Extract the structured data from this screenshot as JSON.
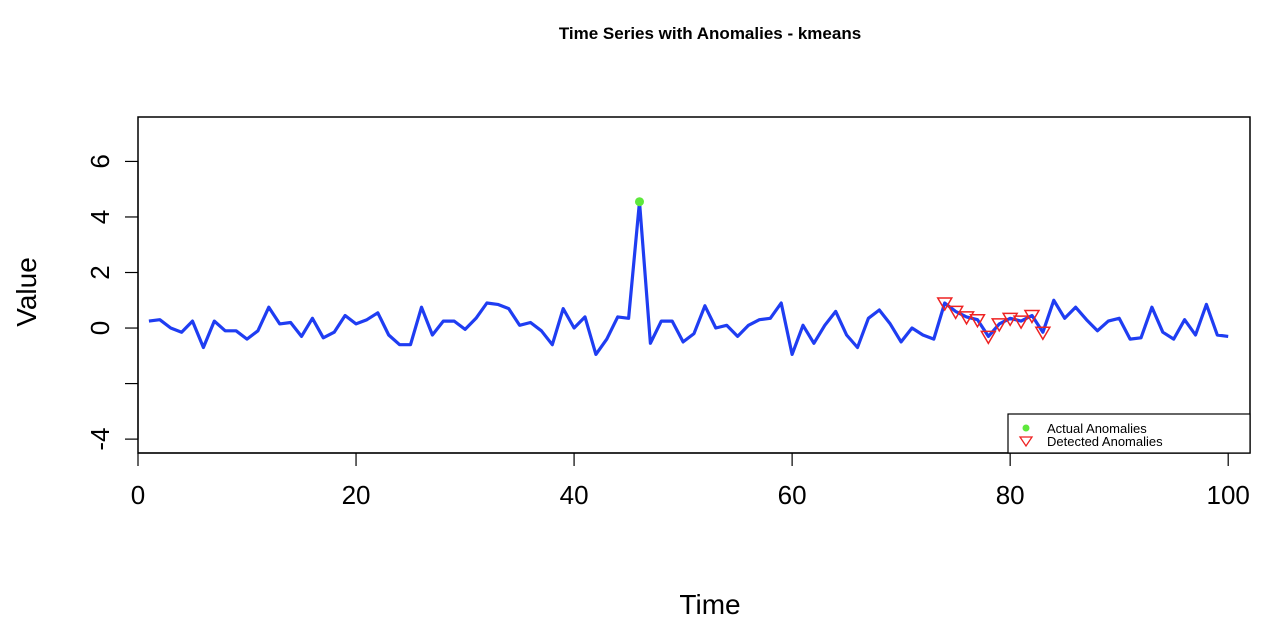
{
  "chart_data": {
    "type": "line",
    "title": "Time Series with Anomalies - kmeans",
    "xlabel": "Time",
    "ylabel": "Value",
    "xlim": [
      0,
      102
    ],
    "ylim": [
      -4.5,
      7.6
    ],
    "xticks": [
      0,
      20,
      40,
      60,
      80,
      100
    ],
    "yticks": [
      -4,
      0,
      2,
      4,
      6
    ],
    "ytick_labels": [
      "-4",
      "0",
      "2",
      "4",
      "6"
    ],
    "grid": false,
    "legend_position": "bottom-right",
    "x": [
      1,
      2,
      3,
      4,
      5,
      6,
      7,
      8,
      9,
      10,
      11,
      12,
      13,
      14,
      15,
      16,
      17,
      18,
      19,
      20,
      21,
      22,
      23,
      24,
      25,
      26,
      27,
      28,
      29,
      30,
      31,
      32,
      33,
      34,
      35,
      36,
      37,
      38,
      39,
      40,
      41,
      42,
      43,
      44,
      45,
      46,
      47,
      48,
      49,
      50,
      51,
      52,
      53,
      54,
      55,
      56,
      57,
      58,
      59,
      60,
      61,
      62,
      63,
      64,
      65,
      66,
      67,
      68,
      69,
      70,
      71,
      72,
      73,
      74,
      75,
      76,
      77,
      78,
      79,
      80,
      81,
      82,
      83,
      84,
      85,
      86,
      87,
      88,
      89,
      90,
      91,
      92,
      93,
      94,
      95,
      96,
      97,
      98,
      99,
      100
    ],
    "series": [
      {
        "color": "#1f3df2",
        "values": [
          0.25,
          0.3,
          0.0,
          -0.15,
          0.25,
          -0.7,
          0.25,
          -0.1,
          -0.1,
          -0.4,
          -0.1,
          0.75,
          0.15,
          0.2,
          -0.3,
          0.35,
          -0.35,
          -0.15,
          0.45,
          0.15,
          0.3,
          0.55,
          -0.25,
          -0.6,
          -0.6,
          0.75,
          -0.25,
          0.25,
          0.25,
          -0.05,
          0.35,
          0.9,
          0.85,
          0.7,
          0.1,
          0.2,
          -0.1,
          -0.6,
          0.7,
          0.0,
          0.4,
          -0.95,
          -0.4,
          0.4,
          0.35,
          4.55,
          -0.55,
          0.25,
          0.25,
          -0.5,
          -0.2,
          0.8,
          0.0,
          0.1,
          -0.3,
          0.1,
          0.3,
          0.35,
          0.9,
          -0.95,
          0.1,
          -0.55,
          0.1,
          0.6,
          -0.25,
          -0.7,
          0.35,
          0.65,
          0.15,
          -0.5,
          0.0,
          -0.25,
          -0.4,
          0.9,
          0.6,
          0.4,
          0.3,
          -0.3,
          0.15,
          0.35,
          0.25,
          0.45,
          -0.15,
          1.0,
          0.35,
          0.75,
          0.3,
          -0.1,
          0.25,
          0.35,
          -0.4,
          -0.35,
          0.75,
          -0.15,
          -0.4,
          0.3,
          -0.25,
          0.85,
          -0.25,
          -0.3
        ]
      }
    ],
    "actual_anomalies": {
      "color": "#5ee83c",
      "points": [
        {
          "x": 46,
          "y": 4.55
        }
      ]
    },
    "detected_anomalies": {
      "color": "#ee2222",
      "points": [
        {
          "x": 74,
          "y": 0.9
        },
        {
          "x": 75,
          "y": 0.6
        },
        {
          "x": 76,
          "y": 0.4
        },
        {
          "x": 77,
          "y": 0.3
        },
        {
          "x": 78,
          "y": -0.3
        },
        {
          "x": 79,
          "y": 0.15
        },
        {
          "x": 80,
          "y": 0.35
        },
        {
          "x": 81,
          "y": 0.25
        },
        {
          "x": 82,
          "y": 0.45
        },
        {
          "x": 83,
          "y": -0.15
        }
      ]
    },
    "legend": [
      "Actual Anomalies",
      "Detected Anomalies"
    ]
  }
}
